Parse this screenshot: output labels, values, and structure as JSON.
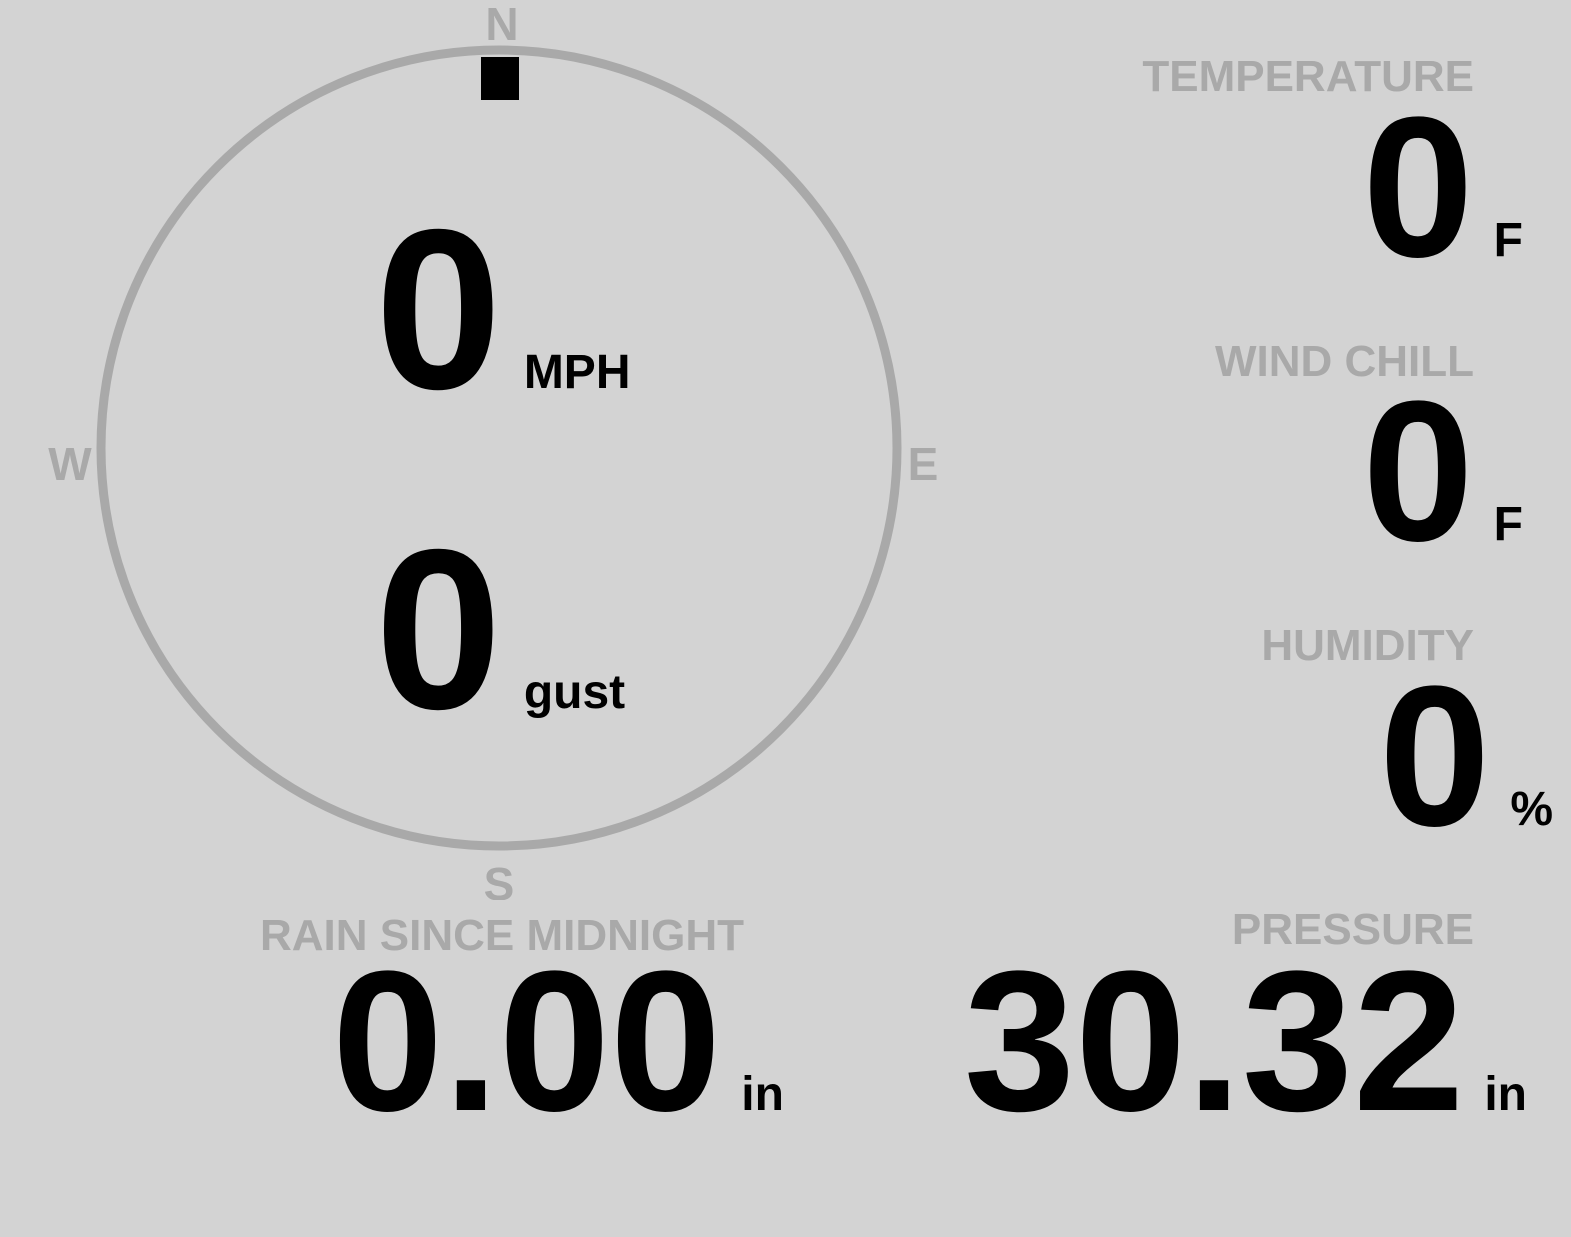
{
  "colors": {
    "background": "#d3d3d3",
    "label": "#a9a9a9",
    "value": "#000000"
  },
  "compass": {
    "n": "N",
    "e": "E",
    "s": "S",
    "w": "W",
    "wind_direction_deg": 0,
    "marker_icon": "wind-direction-marker"
  },
  "wind": {
    "speed": "0",
    "speed_unit": "MPH",
    "gust": "0",
    "gust_unit": "gust"
  },
  "temperature": {
    "label": "TEMPERATURE",
    "value": "0",
    "unit": "F"
  },
  "wind_chill": {
    "label": "WIND CHILL",
    "value": "0",
    "unit": "F"
  },
  "humidity": {
    "label": "HUMIDITY",
    "value": "0",
    "unit": "%"
  },
  "rain": {
    "label": "RAIN SINCE MIDNIGHT",
    "value": "0.00",
    "unit": "in"
  },
  "pressure": {
    "label": "PRESSURE",
    "value": "30.32",
    "unit": "in"
  }
}
